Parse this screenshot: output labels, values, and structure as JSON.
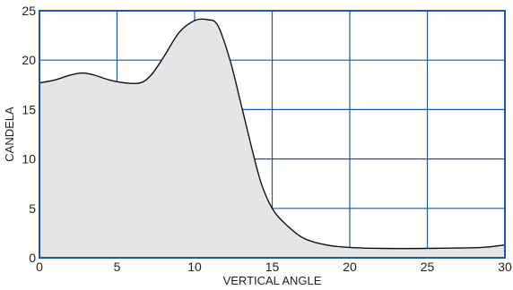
{
  "chart_data": {
    "type": "area",
    "xlabel": "VERTICAL ANGLE",
    "ylabel": "CANDELA",
    "xlim": [
      0,
      30
    ],
    "ylim": [
      0,
      25
    ],
    "xticks": [
      0,
      5,
      10,
      15,
      20,
      25,
      30
    ],
    "yticks": [
      0,
      5,
      10,
      15,
      20,
      25
    ],
    "grid": true,
    "colors": {
      "grid": "#1a5aa6",
      "fill": "#e4e5e7",
      "line": "#111111"
    },
    "series": [
      {
        "x": [
          0,
          1,
          2,
          2.8,
          3.5,
          4.5,
          5.5,
          6.5,
          7.2,
          8,
          9,
          10,
          10.8,
          11.5,
          12.3,
          13,
          13.7,
          14.3,
          15,
          15.8,
          17,
          18.5,
          20,
          22,
          25,
          28.5,
          30
        ],
        "y": [
          17.7,
          18,
          18.5,
          18.7,
          18.5,
          18,
          17.7,
          17.7,
          18.5,
          20.3,
          22.8,
          24,
          24.1,
          23.5,
          19.9,
          15.5,
          11,
          7.5,
          5,
          3.5,
          2,
          1.3,
          1.05,
          0.95,
          0.95,
          1.05,
          1.3
        ]
      }
    ]
  }
}
